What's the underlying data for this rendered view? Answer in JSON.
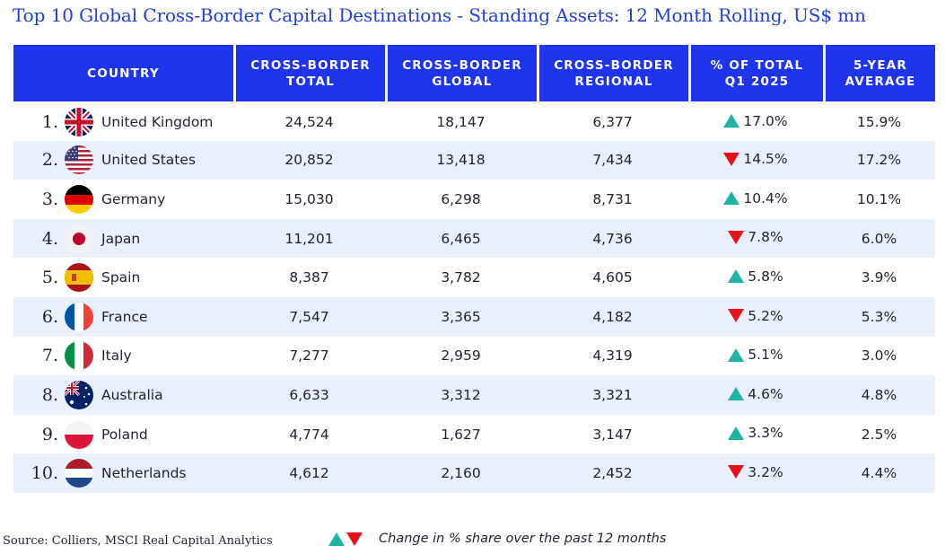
{
  "title": "Top 10 Global Cross-Border Capital Destinations - Standing Assets: 12 Month Rolling, US$ mn",
  "columns": [
    {
      "line1": "COUNTRY",
      "line2": ""
    },
    {
      "line1": "CROSS-BORDER",
      "line2": "TOTAL"
    },
    {
      "line1": "CROSS-BORDER",
      "line2": "GLOBAL"
    },
    {
      "line1": "CROSS-BORDER",
      "line2": "REGIONAL"
    },
    {
      "line1": "% OF TOTAL",
      "line2": "Q1 2025"
    },
    {
      "line1": "5-YEAR",
      "line2": "AVERAGE"
    }
  ],
  "rows": [
    {
      "rank": "1.",
      "flag": "uk-flag-icon",
      "country": "United Kingdom",
      "total": "24,524",
      "global": "18,147",
      "regional": "6,377",
      "trend": "up",
      "pct": "17.0%",
      "avg": "15.9%"
    },
    {
      "rank": "2.",
      "flag": "us-flag-icon",
      "country": "United States",
      "total": "20,852",
      "global": "13,418",
      "regional": "7,434",
      "trend": "down",
      "pct": "14.5%",
      "avg": "17.2%"
    },
    {
      "rank": "3.",
      "flag": "germany-flag-icon",
      "country": "Germany",
      "total": "15,030",
      "global": "6,298",
      "regional": "8,731",
      "trend": "up",
      "pct": "10.4%",
      "avg": "10.1%"
    },
    {
      "rank": "4.",
      "flag": "japan-flag-icon",
      "country": "Japan",
      "total": "11,201",
      "global": "6,465",
      "regional": "4,736",
      "trend": "down",
      "pct": "7.8%",
      "avg": "6.0%"
    },
    {
      "rank": "5.",
      "flag": "spain-flag-icon",
      "country": "Spain",
      "total": "8,387",
      "global": "3,782",
      "regional": "4,605",
      "trend": "up",
      "pct": "5.8%",
      "avg": "3.9%"
    },
    {
      "rank": "6.",
      "flag": "france-flag-icon",
      "country": "France",
      "total": "7,547",
      "global": "3,365",
      "regional": "4,182",
      "trend": "down",
      "pct": "5.2%",
      "avg": "5.3%"
    },
    {
      "rank": "7.",
      "flag": "italy-flag-icon",
      "country": "Italy",
      "total": "7,277",
      "global": "2,959",
      "regional": "4,319",
      "trend": "up",
      "pct": "5.1%",
      "avg": "3.0%"
    },
    {
      "rank": "8.",
      "flag": "australia-flag-icon",
      "country": "Australia",
      "total": "6,633",
      "global": "3,312",
      "regional": "3,321",
      "trend": "up",
      "pct": "4.6%",
      "avg": "4.8%"
    },
    {
      "rank": "9.",
      "flag": "poland-flag-icon",
      "country": "Poland",
      "total": "4,774",
      "global": "1,627",
      "regional": "3,147",
      "trend": "up",
      "pct": "3.3%",
      "avg": "2.5%"
    },
    {
      "rank": "10.",
      "flag": "netherlands-flag-icon",
      "country": "Netherlands",
      "total": "4,612",
      "global": "2,160",
      "regional": "2,452",
      "trend": "down",
      "pct": "3.2%",
      "avg": "4.4%"
    }
  ],
  "source": "Source: Colliers, MSCI Real Capital Analytics",
  "legend": {
    "text": "Change in % share over the past 12 months",
    "up_icon": "triangle-up-icon",
    "down_icon": "triangle-down-icon"
  },
  "colors": {
    "header_bg": "#1d35ec",
    "title": "#1f3fd6",
    "row_alt": "#eaf0fb",
    "up": "#1fb3a2",
    "down": "#e8101b"
  }
}
